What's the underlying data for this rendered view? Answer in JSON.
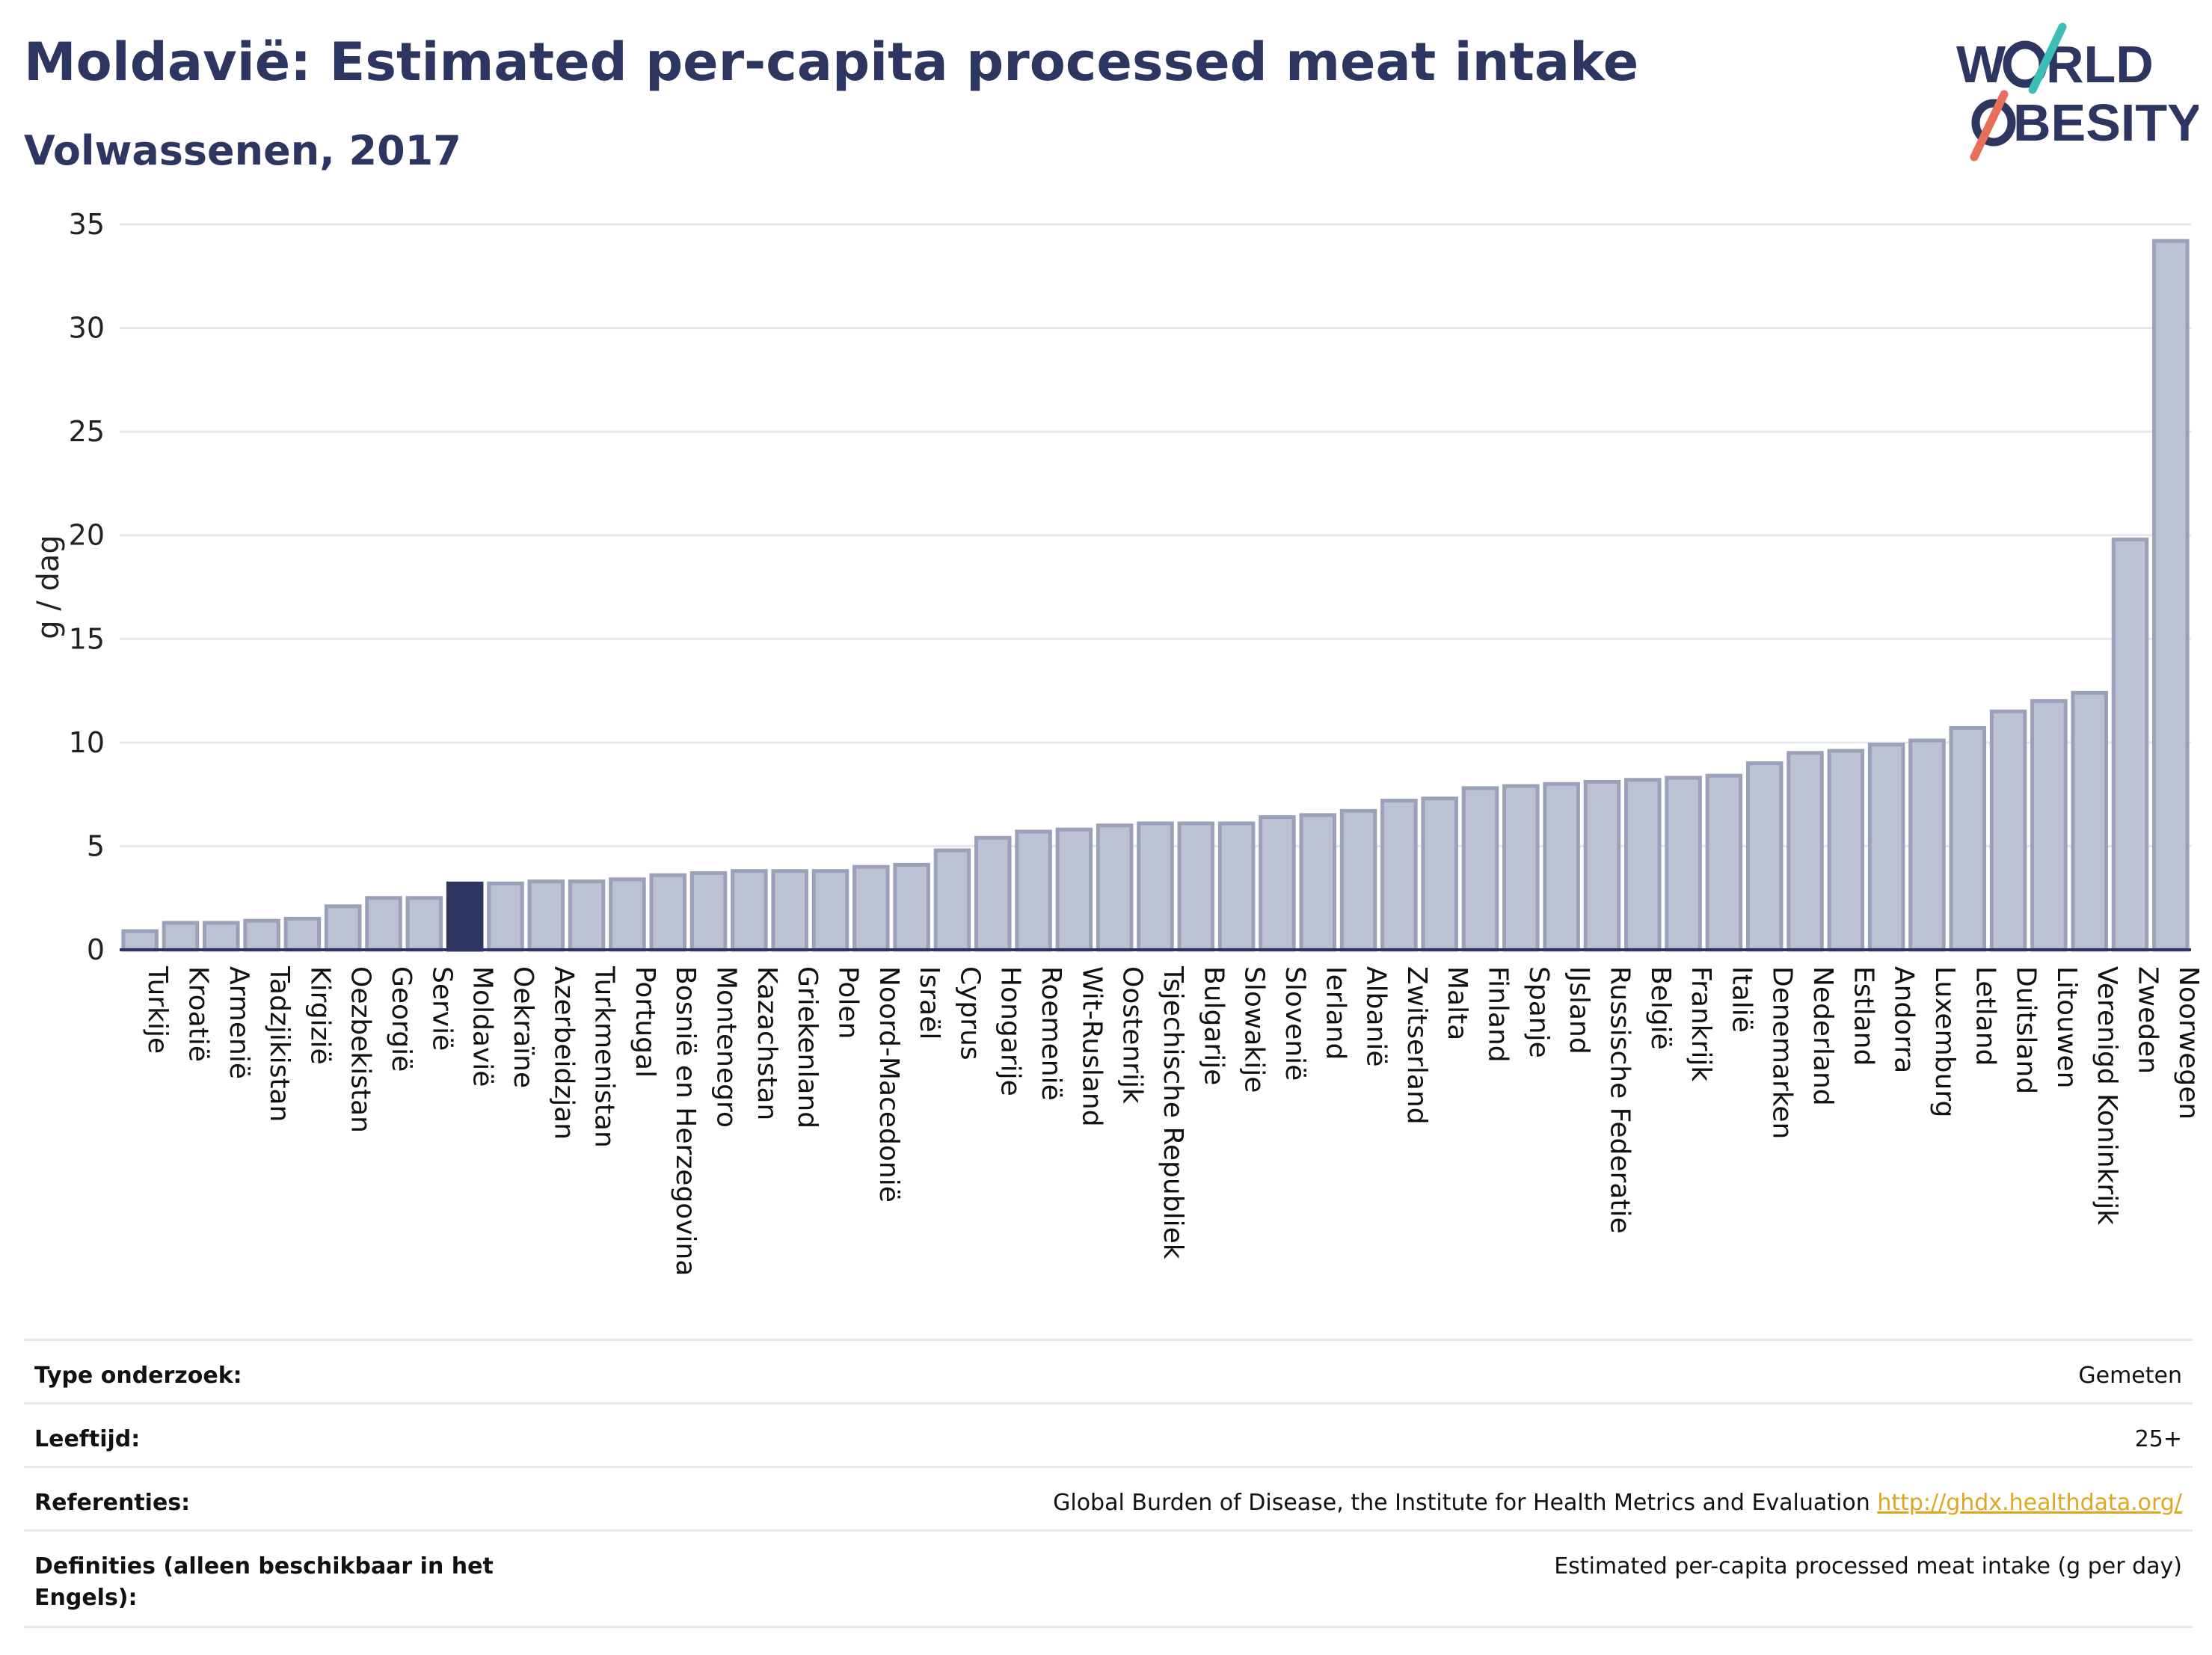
{
  "title": "Moldavië: Estimated per-capita processed meat intake",
  "subtitle": "Volwassenen, 2017",
  "logo": {
    "line1_prefix": "W",
    "line1_suffix": "RLD",
    "line2_suffix": "BESITY"
  },
  "colors": {
    "bar": "#bcc2d3",
    "bar_stroke": "#9aa1b8",
    "highlight": "#2d3561",
    "accent_teal": "#3cbdb6",
    "accent_coral": "#e8705a"
  },
  "chart_data": {
    "type": "bar",
    "ylabel": "g / dag",
    "ylim": [
      0,
      35
    ],
    "yticks": [
      0,
      5,
      10,
      15,
      20,
      25,
      30,
      35
    ],
    "grid": true,
    "highlight": "Moldavië",
    "categories": [
      "Turkije",
      "Kroatië",
      "Armenië",
      "Tadzjikistan",
      "Kirgizië",
      "Oezbekistan",
      "Georgië",
      "Servië",
      "Moldavië",
      "Oekraïne",
      "Azerbeidzjan",
      "Turkmenistan",
      "Portugal",
      "Bosnië en Herzegovina",
      "Montenegro",
      "Kazachstan",
      "Griekenland",
      "Polen",
      "Noord-Macedonië",
      "Israël",
      "Cyprus",
      "Hongarije",
      "Roemenië",
      "Wit-Rusland",
      "Oostenrijk",
      "Tsjechische Republiek",
      "Bulgarije",
      "Slowakije",
      "Slovenië",
      "Ierland",
      "Albanië",
      "Zwitserland",
      "Malta",
      "Finland",
      "Spanje",
      "IJsland",
      "Russische Federatie",
      "België",
      "Frankrijk",
      "Italië",
      "Denemarken",
      "Nederland",
      "Estland",
      "Andorra",
      "Luxemburg",
      "Letland",
      "Duitsland",
      "Litouwen",
      "Verenigd Koninkrijk",
      "Zweden",
      "Noorwegen"
    ],
    "values": [
      0.9,
      1.3,
      1.3,
      1.4,
      1.5,
      2.1,
      2.5,
      2.5,
      3.2,
      3.2,
      3.3,
      3.3,
      3.4,
      3.6,
      3.7,
      3.8,
      3.8,
      3.8,
      4.0,
      4.1,
      4.8,
      5.4,
      5.7,
      5.8,
      6.0,
      6.1,
      6.1,
      6.1,
      6.4,
      6.5,
      6.7,
      7.2,
      7.3,
      7.8,
      7.9,
      8.0,
      8.1,
      8.2,
      8.3,
      8.4,
      9.0,
      9.5,
      9.6,
      9.9,
      10.1,
      10.7,
      11.5,
      12.0,
      12.4,
      19.8,
      34.2
    ]
  },
  "info": [
    {
      "label": "Type onderzoek:",
      "value": "Gemeten"
    },
    {
      "label": "Leeftijd:",
      "value": "25+"
    },
    {
      "label": "Referenties:",
      "value": "Global Burden of Disease, the Institute for Health Metrics and Evaluation",
      "link": "http://ghdx.healthdata.org/"
    },
    {
      "label": "Definities (alleen beschikbaar in het Engels):",
      "value": "Estimated per-capita processed meat intake (g per day)"
    }
  ]
}
